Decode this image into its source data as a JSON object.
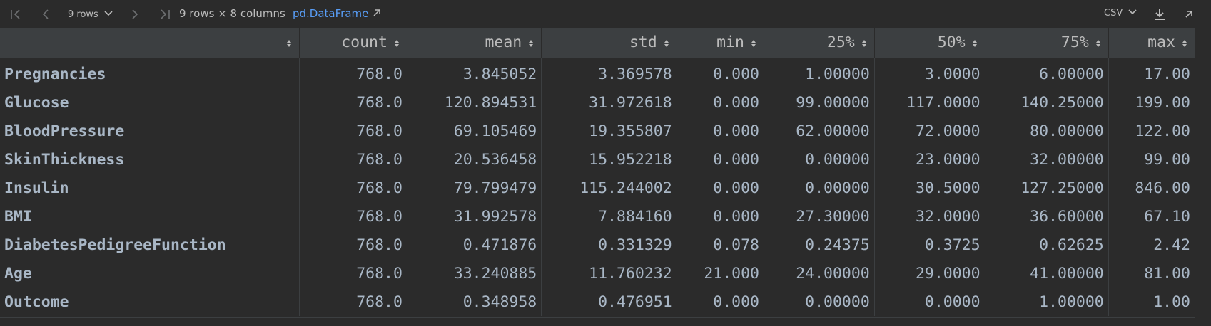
{
  "toolbar": {
    "rows_label": "9 rows",
    "dims_label": "9 rows × 8 columns",
    "dataframe_link": "pd.DataFrame",
    "export_format": "CSV"
  },
  "table": {
    "columns": [
      "",
      "count",
      "mean",
      "std",
      "min",
      "25%",
      "50%",
      "75%",
      "max"
    ],
    "rows": [
      [
        "Pregnancies",
        "768.0",
        "3.845052",
        "3.369578",
        "0.000",
        "1.00000",
        "3.0000",
        "6.00000",
        "17.00"
      ],
      [
        "Glucose",
        "768.0",
        "120.894531",
        "31.972618",
        "0.000",
        "99.00000",
        "117.0000",
        "140.25000",
        "199.00"
      ],
      [
        "BloodPressure",
        "768.0",
        "69.105469",
        "19.355807",
        "0.000",
        "62.00000",
        "72.0000",
        "80.00000",
        "122.00"
      ],
      [
        "SkinThickness",
        "768.0",
        "20.536458",
        "15.952218",
        "0.000",
        "0.00000",
        "23.0000",
        "32.00000",
        "99.00"
      ],
      [
        "Insulin",
        "768.0",
        "79.799479",
        "115.244002",
        "0.000",
        "0.00000",
        "30.5000",
        "127.25000",
        "846.00"
      ],
      [
        "BMI",
        "768.0",
        "31.992578",
        "7.884160",
        "0.000",
        "27.30000",
        "32.0000",
        "36.60000",
        "67.10"
      ],
      [
        "DiabetesPedigreeFunction",
        "768.0",
        "0.471876",
        "0.331329",
        "0.078",
        "0.24375",
        "0.3725",
        "0.62625",
        "2.42"
      ],
      [
        "Age",
        "768.0",
        "33.240885",
        "11.760232",
        "21.000",
        "24.00000",
        "29.0000",
        "41.00000",
        "81.00"
      ],
      [
        "Outcome",
        "768.0",
        "0.348958",
        "0.476951",
        "0.000",
        "0.00000",
        "0.0000",
        "1.00000",
        "1.00"
      ]
    ]
  },
  "icons": {
    "first": "first-page-icon",
    "prev": "previous-page-icon",
    "next": "next-page-icon",
    "last": "last-page-icon",
    "sort": "sort-icon",
    "download": "download-icon",
    "expand": "open-in-new-icon"
  },
  "colors": {
    "background": "#2b2b2b",
    "header_bg": "#3c3f41",
    "text": "#a9b7c6",
    "link": "#589df6"
  }
}
